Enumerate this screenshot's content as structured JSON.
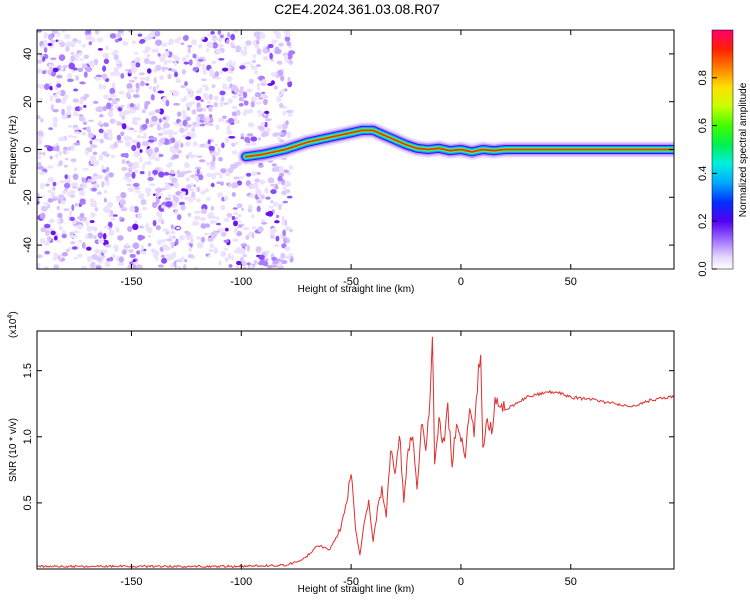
{
  "title": "C2E4.2024.361.03.08.R07",
  "chart_data": [
    {
      "type": "heatmap",
      "xlabel": "Height of straight line (km)",
      "ylabel": "Frequency (Hz)",
      "xlim": [
        -193,
        97
      ],
      "ylim": [
        -50,
        50
      ],
      "xticks": [
        -150,
        -100,
        -50,
        0,
        50
      ],
      "yticks": [
        -40,
        -20,
        0,
        20,
        40
      ],
      "noise_region_x": [
        -193,
        -77
      ],
      "ridge": {
        "x": [
          -98,
          -90,
          -80,
          -70,
          -60,
          -50,
          -45,
          -40,
          -35,
          -30,
          -25,
          -20,
          -15,
          -10,
          -5,
          0,
          5,
          10,
          15,
          20,
          30,
          40,
          60,
          80,
          97
        ],
        "y": [
          -3,
          -2,
          0,
          3,
          5,
          7,
          8,
          8,
          6,
          4,
          2,
          0.5,
          0,
          0.5,
          -0.5,
          0,
          -1,
          0,
          -0.5,
          0,
          0,
          0,
          0,
          0,
          0
        ]
      },
      "colorbar": {
        "label": "Normalized spectral amplitude",
        "range": [
          0,
          1
        ],
        "ticks": [
          0.0,
          0.2,
          0.4,
          0.6,
          0.8
        ],
        "tick_labels": [
          "0.0",
          "0.2",
          "0.4",
          "0.6",
          "0.8"
        ]
      }
    },
    {
      "type": "line",
      "xlabel": "Height of straight line (km)",
      "ylabel": "SNR (10 * v/v)",
      "multiplier_label": "(x10",
      "multiplier_exp": "4",
      "multiplier_close": ")",
      "xlim": [
        -193,
        97
      ],
      "ylim": [
        0,
        1.8
      ],
      "xticks": [
        -150,
        -100,
        -50,
        0,
        50
      ],
      "yticks": [
        0.5,
        1.0,
        1.5
      ],
      "ytick_labels": [
        "0.5",
        "1.0",
        "1.5"
      ],
      "color": "#e03030",
      "series": [
        {
          "x": [
            -193,
            -160,
            -130,
            -100,
            -80,
            -75,
            -70,
            -65,
            -60,
            -55,
            -52,
            -50,
            -48,
            -46,
            -44,
            -42,
            -40,
            -38,
            -36,
            -34,
            -32,
            -30,
            -28,
            -26,
            -24,
            -22,
            -20,
            -18,
            -16,
            -14,
            -13,
            -12,
            -10,
            -8,
            -6,
            -4,
            -2,
            0,
            2,
            4,
            6,
            8,
            9,
            10,
            12,
            14,
            16,
            18,
            20,
            25,
            30,
            35,
            40,
            45,
            50,
            55,
            60,
            65,
            70,
            75,
            80,
            85,
            90,
            97
          ],
          "y": [
            0.02,
            0.02,
            0.02,
            0.02,
            0.03,
            0.05,
            0.1,
            0.18,
            0.14,
            0.3,
            0.5,
            0.75,
            0.3,
            0.1,
            0.35,
            0.5,
            0.2,
            0.45,
            0.6,
            0.4,
            0.9,
            0.7,
            1.05,
            0.5,
            0.9,
            1.0,
            0.6,
            1.1,
            0.9,
            1.3,
            1.8,
            0.8,
            1.15,
            0.95,
            1.2,
            0.8,
            1.1,
            1.0,
            0.85,
            1.2,
            1.05,
            1.5,
            1.7,
            0.9,
            1.15,
            1.05,
            1.3,
            1.25,
            1.2,
            1.25,
            1.3,
            1.32,
            1.34,
            1.33,
            1.3,
            1.29,
            1.28,
            1.26,
            1.25,
            1.23,
            1.24,
            1.27,
            1.29,
            1.3
          ]
        }
      ]
    }
  ]
}
